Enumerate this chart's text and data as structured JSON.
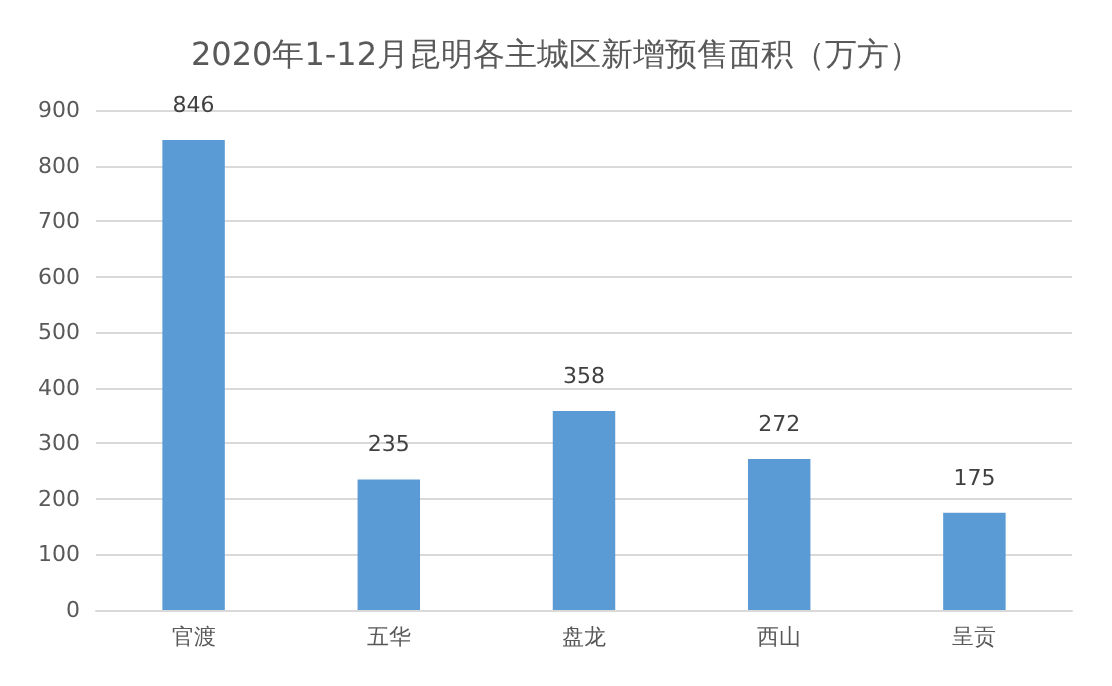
{
  "chart_data": {
    "type": "bar",
    "title": "2020年1-12月昆明各主城区新增预售面积（万方）",
    "categories": [
      "官渡",
      "五华",
      "盘龙",
      "西山",
      "呈贡"
    ],
    "values": [
      846,
      235,
      358,
      272,
      175
    ],
    "color": "#5b9bd5",
    "ylim": [
      0,
      900
    ],
    "yticks": [
      0,
      100,
      200,
      300,
      400,
      500,
      600,
      700,
      800,
      900
    ],
    "grid": "y",
    "data_labels": true
  }
}
